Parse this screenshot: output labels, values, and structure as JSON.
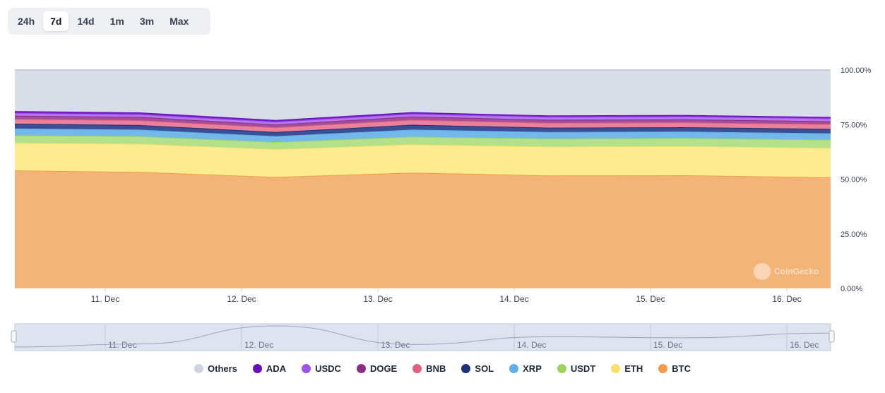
{
  "range_tabs": [
    {
      "label": "24h",
      "active": false
    },
    {
      "label": "7d",
      "active": true
    },
    {
      "label": "14d",
      "active": false
    },
    {
      "label": "1m",
      "active": false
    },
    {
      "label": "3m",
      "active": false
    },
    {
      "label": "Max",
      "active": false
    }
  ],
  "watermark": "CoinGecko",
  "chart_data": {
    "type": "area",
    "stacked": true,
    "x": [
      "10. Dec 06:00",
      "11. Dec 06:00",
      "12. Dec 06:00",
      "13. Dec 06:00",
      "14. Dec 06:00",
      "15. Dec 06:00",
      "16. Dec 06:00"
    ],
    "x_ticks": [
      "11. Dec",
      "12. Dec",
      "13. Dec",
      "14. Dec",
      "15. Dec",
      "16. Dec"
    ],
    "y_ticks": [
      "0.00%",
      "25.00%",
      "50.00%",
      "75.00%",
      "100.00%"
    ],
    "ylim": [
      0,
      100
    ],
    "series": [
      {
        "name": "BTC",
        "color": "#f2b477",
        "line_color": "#f29b4c",
        "values": [
          54.0,
          53.3,
          51.0,
          53.0,
          51.7,
          51.8,
          50.8
        ]
      },
      {
        "name": "ETH",
        "color": "#fdeb8f",
        "line_color": "#f8e06a",
        "values": [
          12.6,
          12.9,
          12.7,
          12.9,
          13.2,
          13.3,
          13.5
        ]
      },
      {
        "name": "USDT",
        "color": "#b5e08a",
        "line_color": "#9bd45b",
        "values": [
          3.5,
          3.5,
          3.3,
          3.6,
          3.7,
          3.7,
          3.8
        ]
      },
      {
        "name": "XRP",
        "color": "#72b8ea",
        "line_color": "#5fadea",
        "values": [
          3.1,
          3.0,
          2.7,
          3.2,
          3.0,
          3.0,
          2.9
        ]
      },
      {
        "name": "SOL",
        "color": "#3b4f94",
        "line_color": "#1d307c",
        "values": [
          2.2,
          2.1,
          1.9,
          2.2,
          2.0,
          2.0,
          2.0
        ]
      },
      {
        "name": "BNB",
        "color": "#e9819b",
        "line_color": "#e0607e",
        "values": [
          2.2,
          2.2,
          2.1,
          2.3,
          2.2,
          2.2,
          2.2
        ]
      },
      {
        "name": "DOGE",
        "color": "#a24f98",
        "line_color": "#8e2c85",
        "values": [
          1.5,
          1.5,
          1.3,
          1.5,
          1.4,
          1.4,
          1.3
        ]
      },
      {
        "name": "USDC",
        "color": "#b378ec",
        "line_color": "#a052ea",
        "values": [
          1.2,
          1.2,
          1.3,
          1.2,
          1.3,
          1.3,
          1.3
        ]
      },
      {
        "name": "ADA",
        "color": "#7a22c8",
        "line_color": "#6a0fc0",
        "values": [
          0.9,
          0.9,
          0.8,
          0.8,
          0.7,
          0.7,
          0.7
        ]
      },
      {
        "name": "Others",
        "color": "#d8dde8",
        "line_color": "#c7ccd8",
        "values": [
          18.8,
          19.4,
          22.9,
          19.3,
          20.8,
          20.6,
          21.5
        ]
      }
    ],
    "legend": [
      "Others",
      "ADA",
      "USDC",
      "DOGE",
      "BNB",
      "SOL",
      "XRP",
      "USDT",
      "ETH",
      "BTC"
    ],
    "legend_colors": [
      "#cdd3e0",
      "#6a0fc0",
      "#a052ea",
      "#8e2c85",
      "#e0607e",
      "#1d307c",
      "#5fadea",
      "#9bd45b",
      "#f8e06a",
      "#f29b4c"
    ],
    "navigator_ticks": [
      "11. Dec",
      "12. Dec",
      "13. Dec",
      "14. Dec",
      "15. Dec",
      "16. Dec"
    ]
  }
}
